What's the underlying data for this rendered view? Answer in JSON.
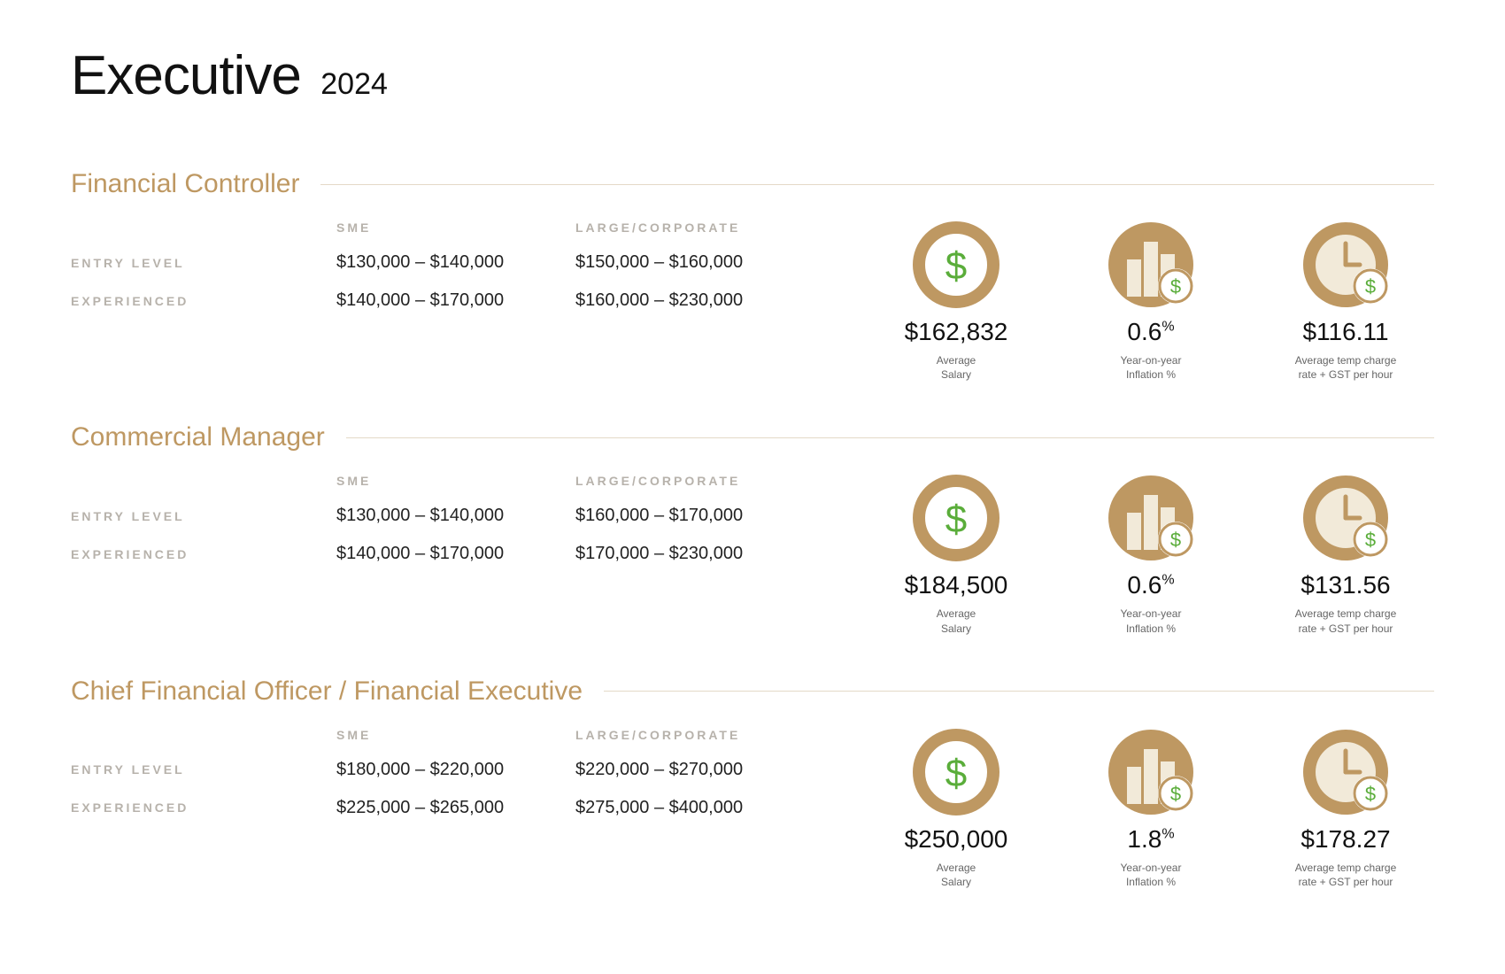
{
  "header": {
    "title": "Executive",
    "year": "2024"
  },
  "labels": {
    "col_sme": "SME",
    "col_large": "LARGE/CORPORATE",
    "row_entry": "ENTRY LEVEL",
    "row_exp": "EXPERIENCED",
    "stat_salary": "Average\nSalary",
    "stat_inflation": "Year-on-year\nInflation %",
    "stat_rate": "Average temp charge\nrate + GST per hour"
  },
  "colors": {
    "accent": "#be9862",
    "accent_light": "#e4d9c7",
    "accent_pale": "#f2ead9",
    "green": "#5aad3a",
    "grey_label": "#b7b2ab",
    "text": "#222222",
    "caption": "#666666"
  },
  "roles": [
    {
      "title": "Financial Controller",
      "entry_sme": "$130,000 – $140,000",
      "entry_large": "$150,000 – $160,000",
      "exp_sme": "$140,000 – $170,000",
      "exp_large": "$160,000 – $230,000",
      "avg_salary": "$162,832",
      "inflation": "0.6",
      "rate": "$116.11"
    },
    {
      "title": "Commercial Manager",
      "entry_sme": "$130,000 – $140,000",
      "entry_large": "$160,000 – $170,000",
      "exp_sme": "$140,000 – $170,000",
      "exp_large": "$170,000 – $230,000",
      "avg_salary": "$184,500",
      "inflation": "0.6",
      "rate": "$131.56"
    },
    {
      "title": "Chief Financial Officer / Financial Executive",
      "entry_sme": "$180,000 – $220,000",
      "entry_large": "$220,000 – $270,000",
      "exp_sme": "$225,000 – $265,000",
      "exp_large": "$275,000 – $400,000",
      "avg_salary": "$250,000",
      "inflation": "1.8",
      "rate": "$178.27"
    }
  ]
}
